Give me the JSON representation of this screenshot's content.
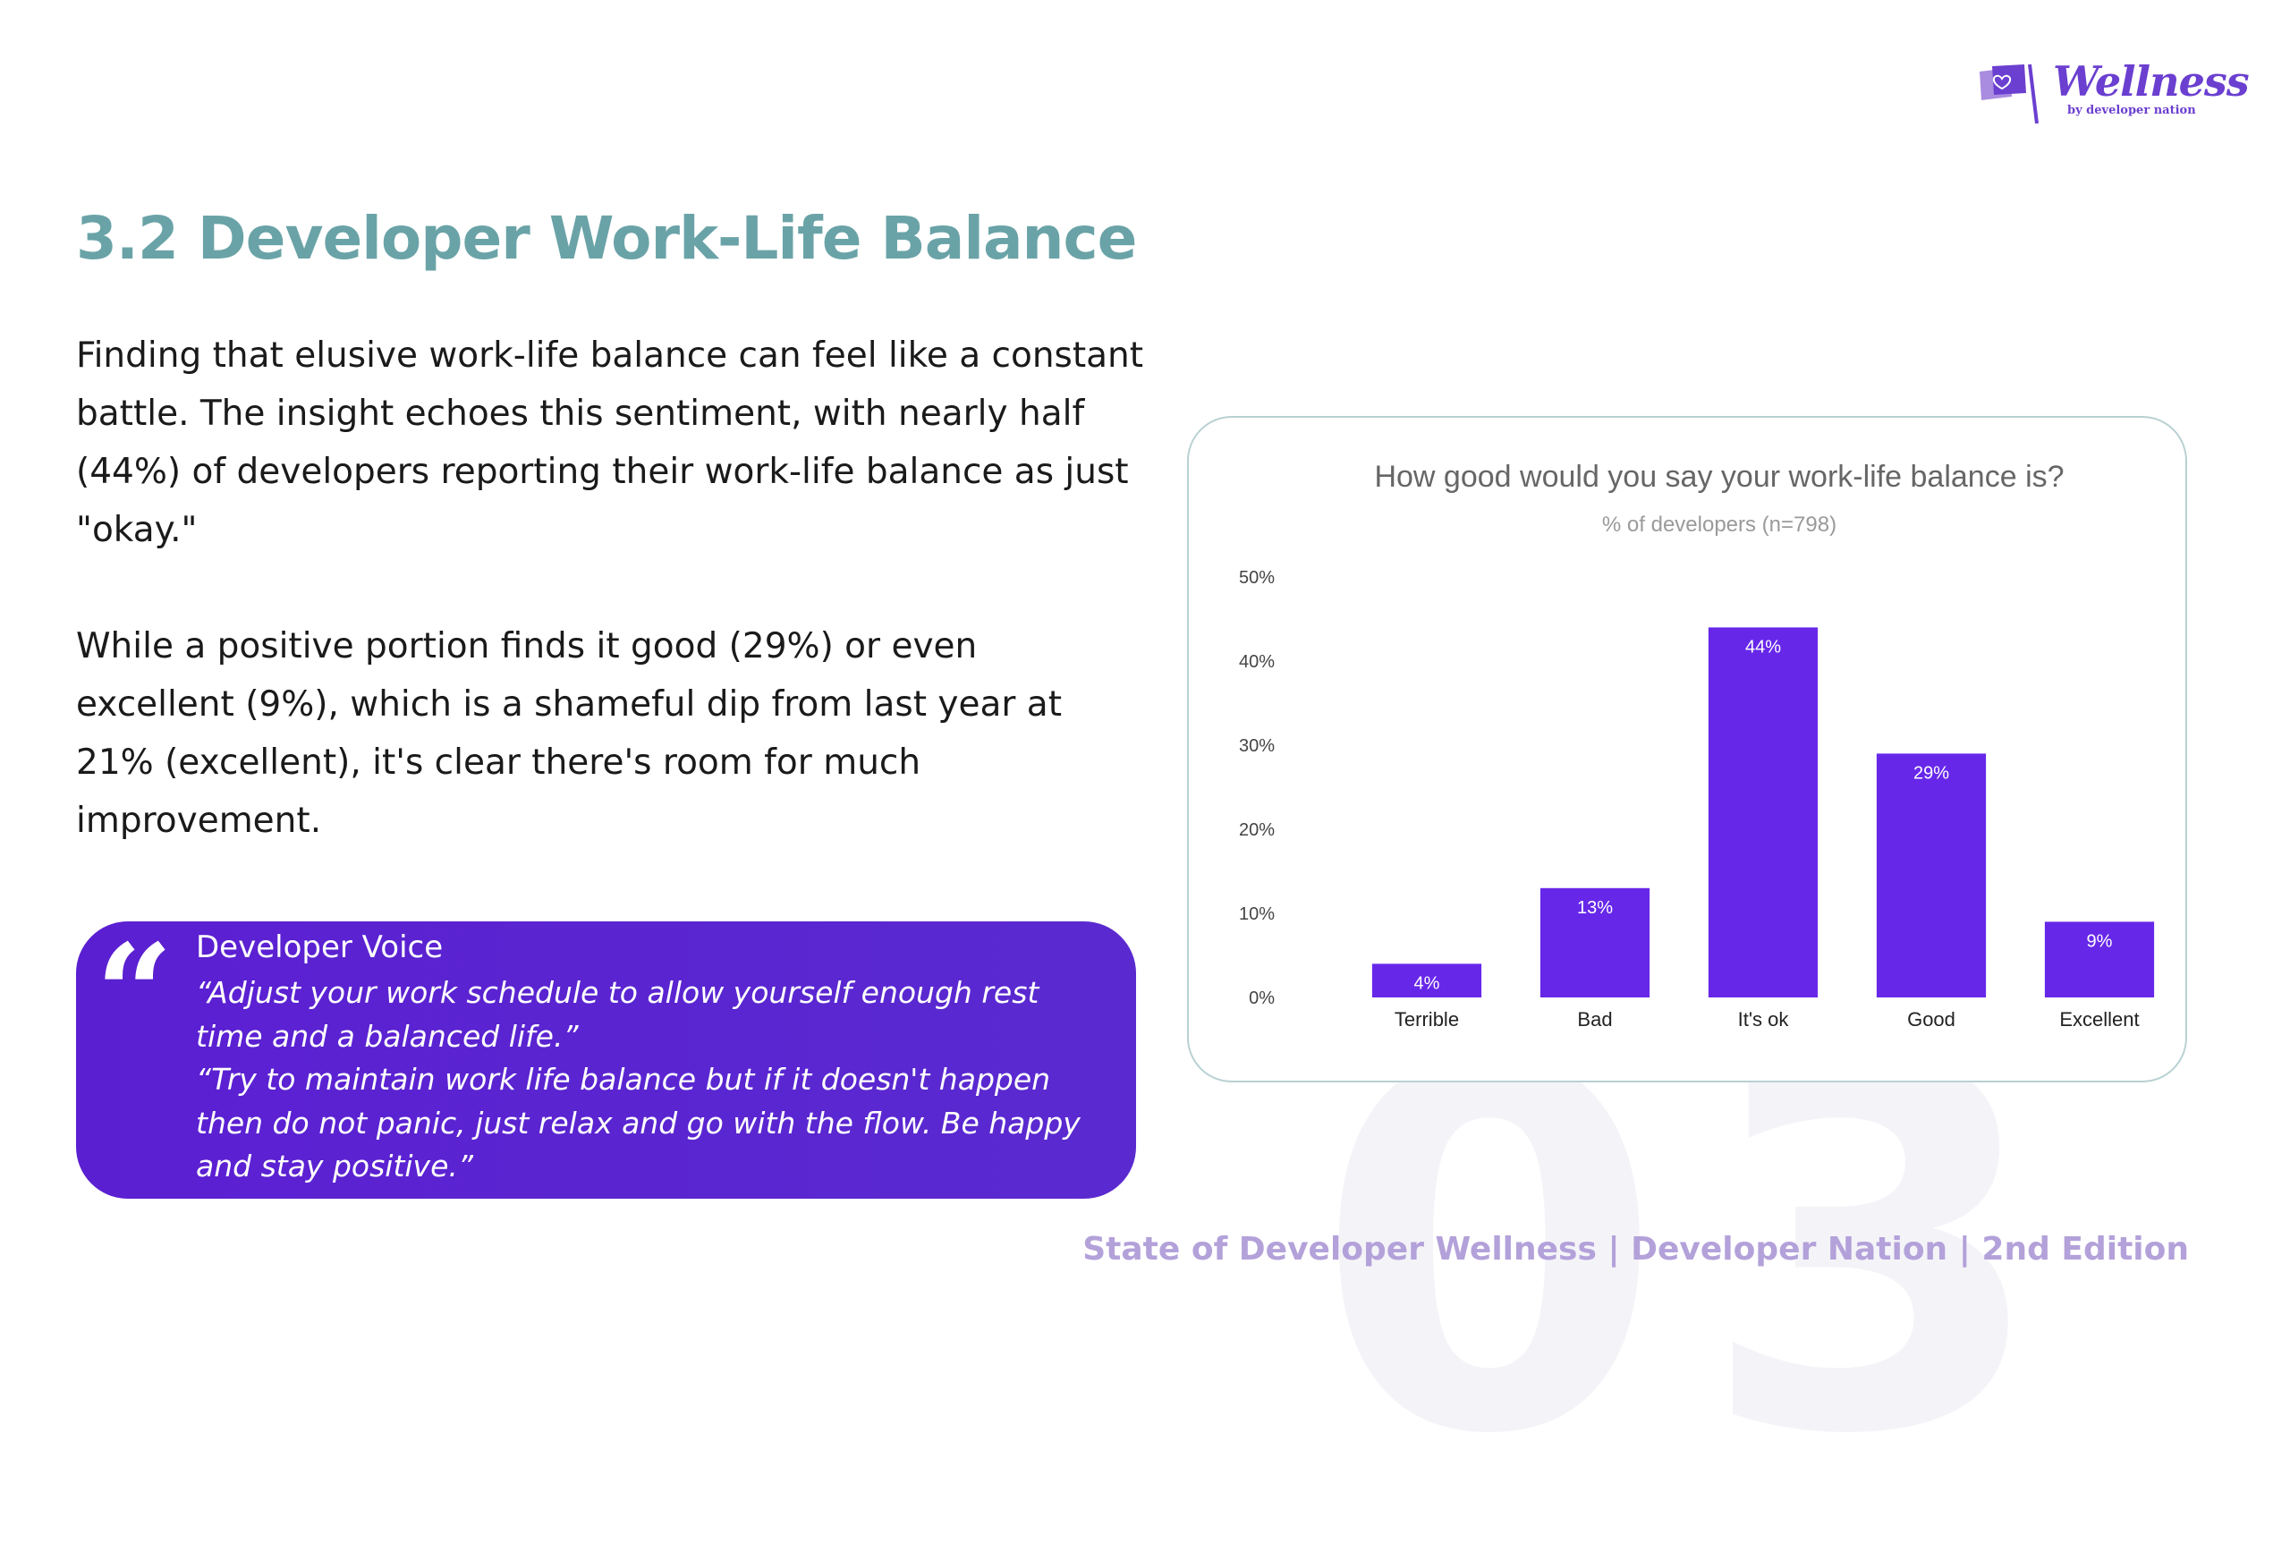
{
  "logo": {
    "name": "Wellness",
    "tagline": "by developer nation"
  },
  "page": {
    "title": "3.2 Developer Work-Life Balance",
    "paragraphs": [
      "Finding that elusive work-life balance can feel like a constant battle. The insight echoes this sentiment, with nearly half (44%) of developers reporting their work-life balance as just \"okay.\"",
      "While a positive portion finds it good (29%) or even excellent (9%), which is a shameful dip from last year at 21% (excellent), it's clear there's room for much improvement."
    ],
    "watermark": "03"
  },
  "developer_voice": {
    "title": "Developer Voice",
    "quotes": [
      "“Adjust your work schedule to allow yourself enough rest time and a balanced life.”",
      "“Try to maintain work life balance but if it doesn't happen then do not panic, just relax and go with the flow. Be happy and stay positive.”"
    ]
  },
  "chart_data": {
    "type": "bar",
    "title": "How good would you say your work-life balance is?",
    "subtitle": "% of developers (n=798)",
    "categories": [
      "Terrible",
      "Bad",
      "It's ok",
      "Good",
      "Excellent"
    ],
    "values": [
      4,
      13,
      44,
      29,
      9
    ],
    "data_labels": [
      "4%",
      "13%",
      "44%",
      "29%",
      "9%"
    ],
    "y_ticks": [
      "0%",
      "10%",
      "20%",
      "30%",
      "40%",
      "50%"
    ],
    "ylim": [
      0,
      50
    ],
    "grid": false,
    "bar_color": "#6727e9"
  },
  "footer": "State of Developer Wellness | Developer Nation | 2nd Edition",
  "colors": {
    "title": "#6aa3a7",
    "accent": "#5b22d3",
    "footer": "#b3a1da",
    "card_border": "#b9d1d3"
  }
}
